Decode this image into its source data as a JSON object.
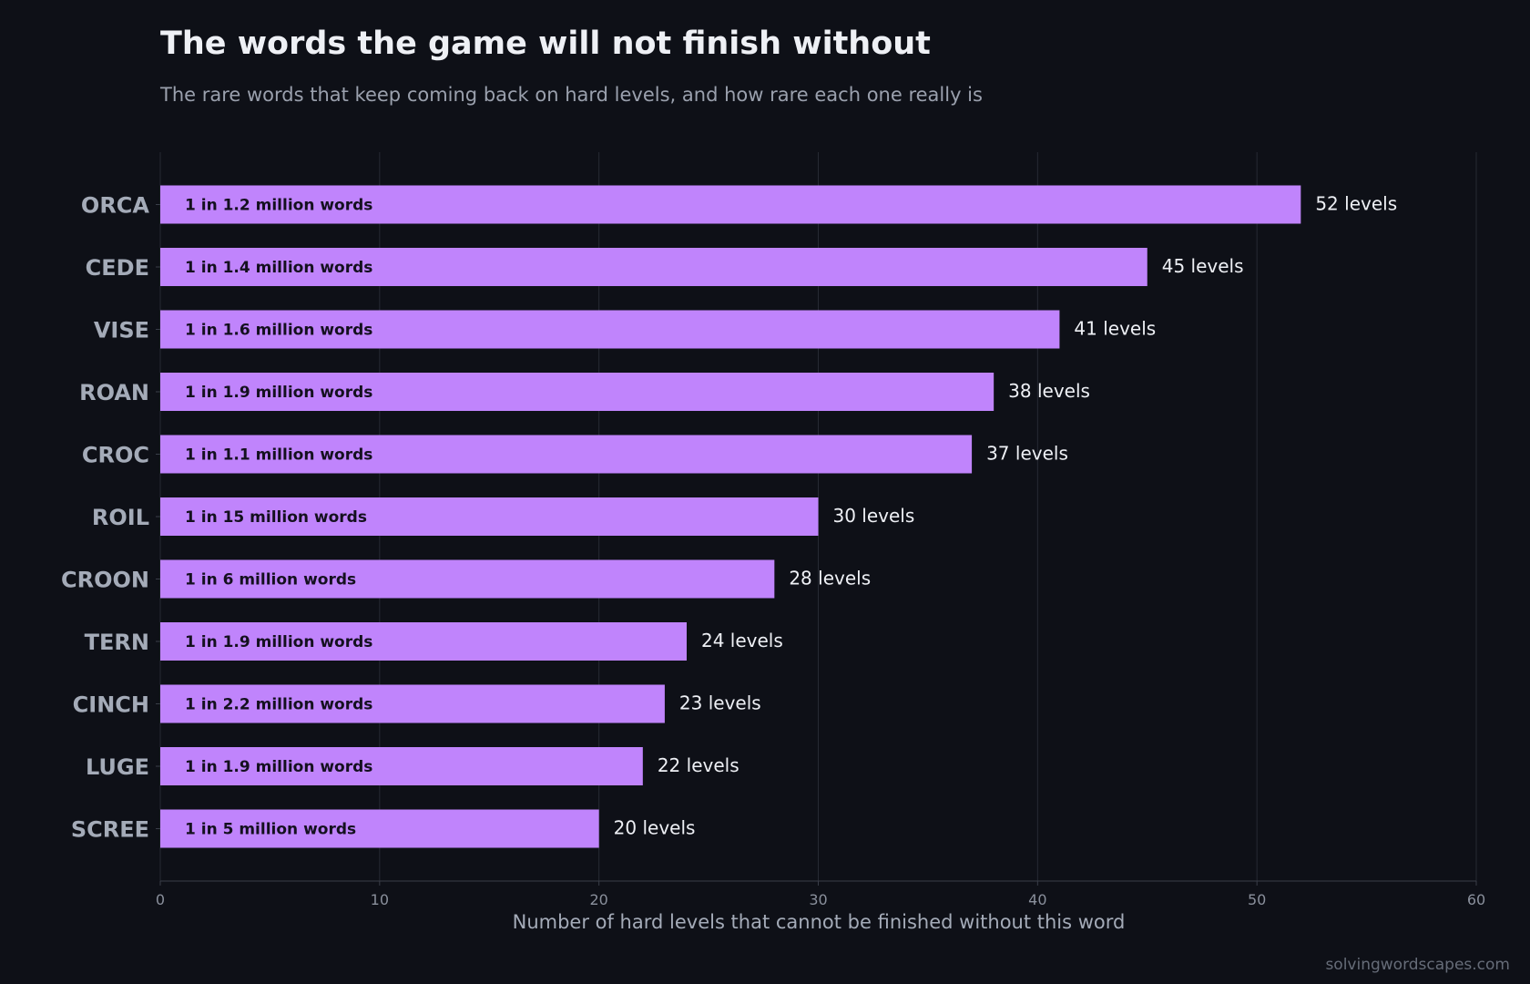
{
  "chart_data": {
    "type": "bar",
    "orientation": "horizontal",
    "title": "The words the game will not finish without",
    "subtitle": "The rare words that keep coming back on hard levels, and how rare each one really is",
    "xlabel": "Number of hard levels that cannot be finished without this word",
    "ylabel": "",
    "xlim": [
      0,
      60
    ],
    "x_ticks": [
      "0",
      "10",
      "20",
      "30",
      "40",
      "50",
      "60"
    ],
    "grid": "vertical",
    "legend": "none",
    "categories": [
      "ORCA",
      "CEDE",
      "VISE",
      "ROAN",
      "CROC",
      "ROIL",
      "CROON",
      "TERN",
      "CINCH",
      "LUGE",
      "SCREE"
    ],
    "values": [
      52,
      45,
      41,
      38,
      37,
      30,
      28,
      24,
      23,
      22,
      20
    ],
    "value_labels": [
      "52 levels",
      "45 levels",
      "41 levels",
      "38 levels",
      "37 levels",
      "30 levels",
      "28 levels",
      "24 levels",
      "23 levels",
      "22 levels",
      "20 levels"
    ],
    "bar_labels": [
      "1 in 1.2 million words",
      "1 in 1.4 million words",
      "1 in 1.6 million words",
      "1 in 1.9 million words",
      "1 in 1.1 million words",
      "1 in 15 million words",
      "1 in 6 million words",
      "1 in 1.9 million words",
      "1 in 2.2 million words",
      "1 in 1.9 million words",
      "1 in 5 million words"
    ],
    "credit": "solvingwordscapes.com"
  },
  "colors": {
    "background": "#0e1017",
    "bar": "#c084fc",
    "grid": "#272a33",
    "axis": "#3a3e49"
  }
}
